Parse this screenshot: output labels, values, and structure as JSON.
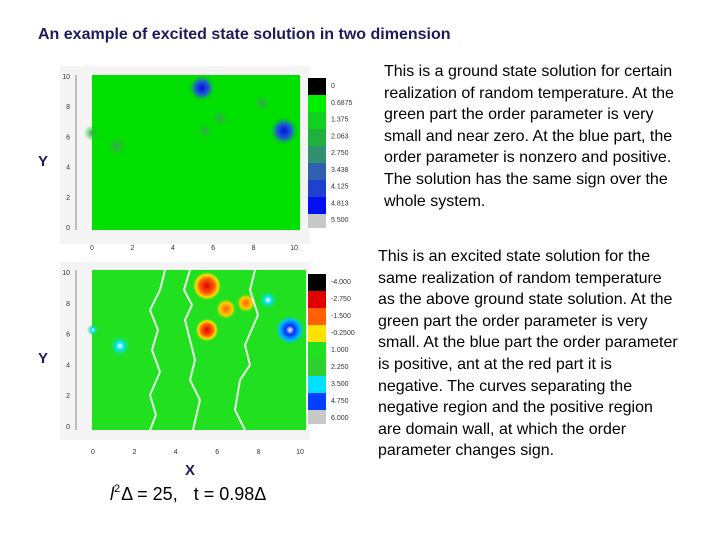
{
  "title": "An example of excited state solution in two dimension",
  "panels": [
    {
      "text": "This is a ground state solution for certain realization of random temperature. At the green part  the order parameter is very small and near zero. At the blue part, the order parameter is nonzero and positive. The solution has the same sign over the whole system.",
      "y_label": "Y",
      "y_ticks": [
        "10",
        "8",
        "6",
        "4",
        "2",
        "0"
      ],
      "x_ticks": [
        "0",
        "2",
        "4",
        "6",
        "8",
        "10"
      ],
      "colorbar": [
        "0",
        "0.6875",
        "1.375",
        "2.063",
        "2.750",
        "3.438",
        "4.125",
        "4.813",
        "5.500"
      ]
    },
    {
      "text": "This is an excited state solution for the same realization of random temperature as the above ground state solution. At the green part  the order parameter is very small. At the blue part the order parameter is positive, ant at the red part it is negative. The curves separating the negative region and the positive region are domain wall,  at which the order parameter changes sign.",
      "y_label": "Y",
      "x_label": "X",
      "y_ticks": [
        "10",
        "8",
        "6",
        "4",
        "2",
        "0"
      ],
      "x_ticks": [
        "0",
        "2",
        "4",
        "6",
        "8",
        "10"
      ],
      "colorbar": [
        "-4.000",
        "-2.750",
        "-1.500",
        "-0.2500",
        "1.000",
        "2.250",
        "3.500",
        "4.750",
        "6.000"
      ]
    }
  ],
  "formula": {
    "base": "l",
    "sup": "2",
    "rest": "Δ = 25,",
    "second": "t = 0.98Δ"
  }
}
